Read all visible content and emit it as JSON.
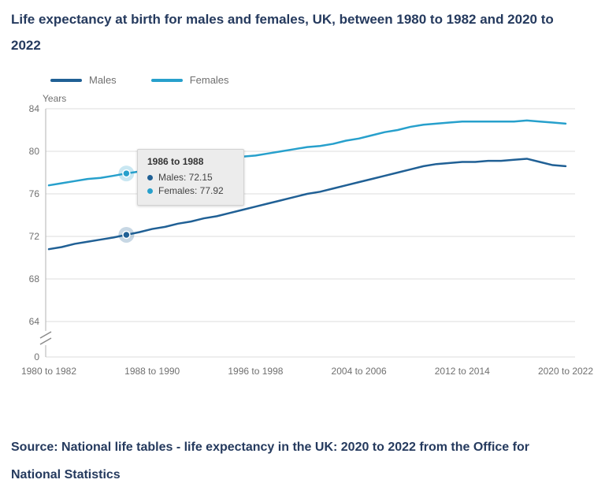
{
  "header": {
    "title": "Life expectancy at birth for males and females, UK, between 1980 to 1982 and 2020 to 2022"
  },
  "legend": {
    "items": [
      {
        "label": "Males",
        "color": "#206095"
      },
      {
        "label": "Females",
        "color": "#27a0cc"
      }
    ]
  },
  "tooltip": {
    "title": "1986 to 1988",
    "rows": [
      {
        "series": "Males",
        "label": "Males: 72.15",
        "color": "#206095"
      },
      {
        "series": "Females",
        "label": "Females: 77.92",
        "color": "#27a0cc"
      }
    ]
  },
  "source": {
    "text": "Source: National life tables - life expectancy in the UK: 2020 to 2022 from the Office for National Statistics"
  },
  "chart_data": {
    "type": "line",
    "title": "Life expectancy at birth for males and females, UK, between 1980 to 1982 and 2020 to 2022",
    "xlabel": "",
    "ylabel": "Years",
    "ylim": [
      64,
      84
    ],
    "y_ticks": [
      84,
      80,
      76,
      72,
      68,
      64,
      0
    ],
    "axis_break_between": [
      0,
      64
    ],
    "grid": "horizontal",
    "legend_position": "top",
    "x_tick_indices": [
      0,
      8,
      16,
      24,
      32,
      40
    ],
    "x_tick_labels": [
      "1980 to 1982",
      "1988 to 1990",
      "1996 to 1998",
      "2004 to 2006",
      "2012 to 2014",
      "2020 to 2022"
    ],
    "categories": [
      "1980 to 1982",
      "1981 to 1983",
      "1982 to 1984",
      "1983 to 1985",
      "1984 to 1986",
      "1985 to 1987",
      "1986 to 1988",
      "1987 to 1989",
      "1988 to 1990",
      "1989 to 1991",
      "1990 to 1992",
      "1991 to 1993",
      "1992 to 1994",
      "1993 to 1995",
      "1994 to 1996",
      "1995 to 1997",
      "1996 to 1998",
      "1997 to 1999",
      "1998 to 2000",
      "1999 to 2001",
      "2000 to 2002",
      "2001 to 2003",
      "2002 to 2004",
      "2003 to 2005",
      "2004 to 2006",
      "2005 to 2007",
      "2006 to 2008",
      "2007 to 2009",
      "2008 to 2010",
      "2009 to 2011",
      "2010 to 2012",
      "2011 to 2013",
      "2012 to 2014",
      "2013 to 2015",
      "2014 to 2016",
      "2015 to 2017",
      "2016 to 2018",
      "2017 to 2019",
      "2018 to 2020",
      "2019 to 2021",
      "2020 to 2022"
    ],
    "series": [
      {
        "name": "Males",
        "color": "#206095",
        "values": [
          70.8,
          71.0,
          71.3,
          71.5,
          71.7,
          71.9,
          72.15,
          72.4,
          72.7,
          72.9,
          73.2,
          73.4,
          73.7,
          73.9,
          74.2,
          74.5,
          74.8,
          75.1,
          75.4,
          75.7,
          76.0,
          76.2,
          76.5,
          76.8,
          77.1,
          77.4,
          77.7,
          78.0,
          78.3,
          78.6,
          78.8,
          78.9,
          79.0,
          79.0,
          79.1,
          79.1,
          79.2,
          79.3,
          79.0,
          78.7,
          78.6
        ]
      },
      {
        "name": "Females",
        "color": "#27a0cc",
        "values": [
          76.8,
          77.0,
          77.2,
          77.4,
          77.5,
          77.7,
          77.92,
          78.1,
          78.4,
          78.6,
          78.8,
          79.0,
          79.2,
          79.3,
          79.4,
          79.5,
          79.6,
          79.8,
          80.0,
          80.2,
          80.4,
          80.5,
          80.7,
          81.0,
          81.2,
          81.5,
          81.8,
          82.0,
          82.3,
          82.5,
          82.6,
          82.7,
          82.8,
          82.8,
          82.8,
          82.8,
          82.8,
          82.9,
          82.8,
          82.7,
          82.6
        ]
      }
    ],
    "highlight": {
      "category": "1986 to 1988",
      "index": 6,
      "values": {
        "Males": 72.15,
        "Females": 77.92
      }
    }
  }
}
